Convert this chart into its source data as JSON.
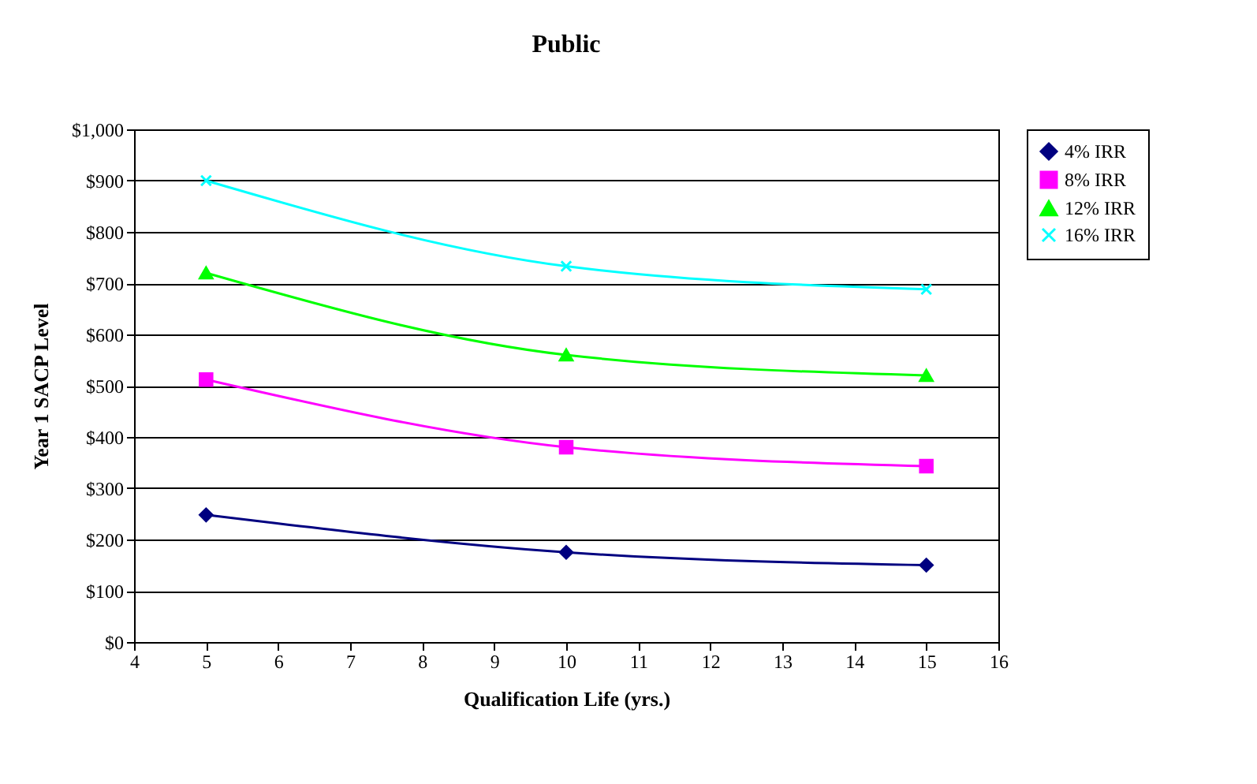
{
  "chart_data": {
    "type": "line",
    "title": "Public",
    "xlabel": "Qualification Life (yrs.)",
    "ylabel": "Year 1 SACP Level",
    "x": [
      5,
      10,
      15
    ],
    "series": [
      {
        "name": "4% IRR",
        "color": "#000080",
        "marker": "diamond",
        "values": [
          248,
          175,
          150
        ]
      },
      {
        "name": "8% IRR",
        "color": "#ff00ff",
        "marker": "square",
        "values": [
          512,
          380,
          343
        ]
      },
      {
        "name": "12% IRR",
        "color": "#00ff00",
        "marker": "triangle",
        "values": [
          720,
          560,
          520
        ]
      },
      {
        "name": "16% IRR",
        "color": "#00ffff",
        "marker": "cross",
        "values": [
          900,
          733,
          688
        ]
      }
    ],
    "xlim": [
      4,
      16
    ],
    "xticks": [
      4,
      5,
      6,
      7,
      8,
      9,
      10,
      11,
      12,
      13,
      14,
      15,
      16
    ],
    "ylim": [
      0,
      1000
    ],
    "yticks": [
      {
        "value": 0,
        "label": "$0"
      },
      {
        "value": 100,
        "label": "$100"
      },
      {
        "value": 200,
        "label": "$200"
      },
      {
        "value": 300,
        "label": "$300"
      },
      {
        "value": 400,
        "label": "$400"
      },
      {
        "value": 500,
        "label": "$500"
      },
      {
        "value": 600,
        "label": "$600"
      },
      {
        "value": 700,
        "label": "$700"
      },
      {
        "value": 800,
        "label": "$800"
      },
      {
        "value": 900,
        "label": "$900"
      },
      {
        "value": 1000,
        "label": "$1,000"
      }
    ],
    "grid": "y",
    "legend": "right",
    "line_style": "solid"
  }
}
